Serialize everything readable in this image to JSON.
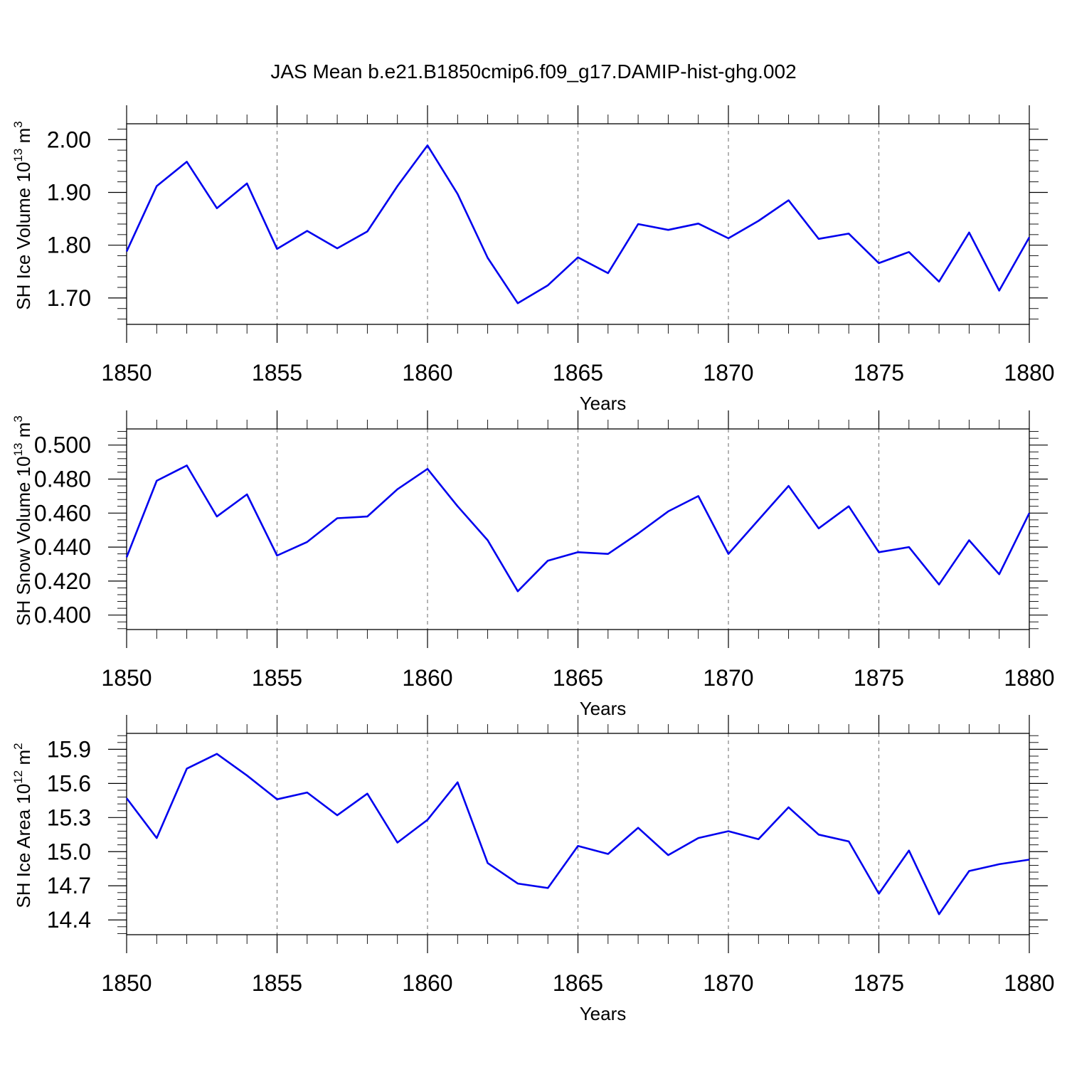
{
  "title": "JAS Mean b.e21.B1850cmip6.f09_g17.DAMIP-hist-ghg.002",
  "line_color": "#0000ee",
  "chart_data": [
    {
      "type": "line",
      "ylabel_main": "SH Ice Volume 10",
      "ylabel_exp1": "13",
      "ylabel_unit": " m",
      "ylabel_exp2": "3",
      "xlabel": "Years",
      "x_ticks": [
        "1850",
        "1855",
        "1860",
        "1865",
        "1870",
        "1875",
        "1880"
      ],
      "y_ticks": [
        "1.70",
        "1.80",
        "1.90",
        "2.00"
      ],
      "xlim": [
        1850,
        1880
      ],
      "ylim": [
        1.65,
        2.03
      ],
      "x": [
        1850,
        1851,
        1852,
        1853,
        1854,
        1855,
        1856,
        1857,
        1858,
        1859,
        1860,
        1861,
        1862,
        1863,
        1864,
        1865,
        1866,
        1867,
        1868,
        1869,
        1870,
        1871,
        1872,
        1873,
        1874,
        1875,
        1876,
        1877,
        1878,
        1879,
        1880
      ],
      "values": [
        1.788,
        1.912,
        1.958,
        1.87,
        1.917,
        1.793,
        1.827,
        1.794,
        1.826,
        1.912,
        1.989,
        1.897,
        1.776,
        1.69,
        1.724,
        1.777,
        1.747,
        1.84,
        1.829,
        1.841,
        1.813,
        1.846,
        1.885,
        1.812,
        1.822,
        1.766,
        1.787,
        1.731,
        1.824,
        1.714,
        1.815
      ]
    },
    {
      "type": "line",
      "ylabel_main": "SH Snow Volume 10",
      "ylabel_exp1": "13",
      "ylabel_unit": " m",
      "ylabel_exp2": "3",
      "xlabel": "Years",
      "x_ticks": [
        "1850",
        "1855",
        "1860",
        "1865",
        "1870",
        "1875",
        "1880"
      ],
      "y_ticks": [
        "0.400",
        "0.420",
        "0.440",
        "0.460",
        "0.480",
        "0.500"
      ],
      "xlim": [
        1850,
        1880
      ],
      "ylim": [
        0.3915,
        0.5095
      ],
      "x": [
        1850,
        1851,
        1852,
        1853,
        1854,
        1855,
        1856,
        1857,
        1858,
        1859,
        1860,
        1861,
        1862,
        1863,
        1864,
        1865,
        1866,
        1867,
        1868,
        1869,
        1870,
        1871,
        1872,
        1873,
        1874,
        1875,
        1876,
        1877,
        1878,
        1879,
        1880
      ],
      "values": [
        0.434,
        0.479,
        0.488,
        0.458,
        0.471,
        0.435,
        0.443,
        0.457,
        0.458,
        0.474,
        0.486,
        0.464,
        0.444,
        0.414,
        0.432,
        0.437,
        0.436,
        0.448,
        0.461,
        0.47,
        0.436,
        0.456,
        0.476,
        0.451,
        0.464,
        0.437,
        0.44,
        0.418,
        0.444,
        0.424,
        0.46
      ]
    },
    {
      "type": "line",
      "ylabel_main": "SH Ice Area 10",
      "ylabel_exp1": "12",
      "ylabel_unit": " m",
      "ylabel_exp2": "2",
      "xlabel": "Years",
      "x_ticks": [
        "1850",
        "1855",
        "1860",
        "1865",
        "1870",
        "1875",
        "1880"
      ],
      "y_ticks": [
        "14.4",
        "14.7",
        "15.0",
        "15.3",
        "15.6",
        "15.9"
      ],
      "xlim": [
        1850,
        1880
      ],
      "ylim": [
        14.27,
        16.04
      ],
      "x": [
        1850,
        1851,
        1852,
        1853,
        1854,
        1855,
        1856,
        1857,
        1858,
        1859,
        1860,
        1861,
        1862,
        1863,
        1864,
        1865,
        1866,
        1867,
        1868,
        1869,
        1870,
        1871,
        1872,
        1873,
        1874,
        1875,
        1876,
        1877,
        1878,
        1879,
        1880
      ],
      "values": [
        15.47,
        15.12,
        15.73,
        15.86,
        15.67,
        15.46,
        15.52,
        15.32,
        15.51,
        15.08,
        15.28,
        15.61,
        14.9,
        14.72,
        14.68,
        15.05,
        14.98,
        15.21,
        14.97,
        15.12,
        15.18,
        15.11,
        15.39,
        15.15,
        15.09,
        14.63,
        15.01,
        14.45,
        14.83,
        14.89,
        14.93
      ]
    }
  ]
}
